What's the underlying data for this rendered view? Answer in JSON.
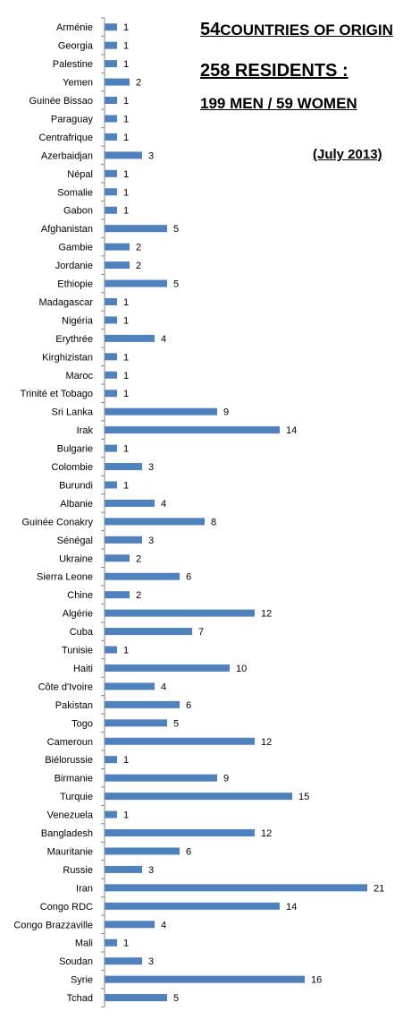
{
  "header": {
    "countries_count": "54",
    "countries_text": "COUNTRIES OF ORIGIN",
    "residents": "258 RESIDENTS :",
    "men_women": "199 MEN  / 59  WOMEN",
    "date": "(July  2013)"
  },
  "colors": {
    "bar": "#4F81BD",
    "axis": "#868686",
    "text": "#000000"
  },
  "chart_data": {
    "type": "bar",
    "orientation": "horizontal",
    "xlim": [
      0,
      21
    ],
    "grid": false,
    "legend": "none",
    "data_labels": true,
    "categories": [
      "Arménie",
      "Georgia",
      "Palestine",
      "Yemen",
      "Guinée Bissao",
      "Paraguay",
      "Centrafrique",
      "Azerbaidjan",
      "Népal",
      "Somalie",
      "Gabon",
      "Afghanistan",
      "Gambie",
      "Jordanie",
      "Ethiopie",
      "Madagascar",
      "Nigéria",
      "Erythrée",
      "Kirghizistan",
      "Maroc",
      "Trinité et Tobago",
      "Sri Lanka",
      "Irak",
      "Bulgarie",
      "Colombie",
      "Burundi",
      "Albanie",
      "Guinée Conakry",
      "Sénégal",
      "Ukraine",
      "Sierra Leone",
      "Chine",
      "Algérie",
      "Cuba",
      "Tunisie",
      "Haiti",
      "Côte d'Ivoire",
      "Pakistan",
      "Togo",
      "Cameroun",
      "Biélorussie",
      "Birmanie",
      "Turquie",
      "Venezuela",
      "Bangladesh",
      "Mauritanie",
      "Russie",
      "Iran",
      "Congo RDC",
      "Congo Brazzaville",
      "Mali",
      "Soudan",
      "Syrie",
      "Tchad"
    ],
    "values": [
      1,
      1,
      1,
      2,
      1,
      1,
      1,
      3,
      1,
      1,
      1,
      5,
      2,
      2,
      5,
      1,
      1,
      4,
      1,
      1,
      1,
      9,
      14,
      1,
      3,
      1,
      4,
      8,
      3,
      2,
      6,
      2,
      12,
      7,
      1,
      10,
      4,
      6,
      5,
      12,
      1,
      9,
      15,
      1,
      12,
      6,
      3,
      21,
      14,
      4,
      1,
      3,
      16,
      5
    ]
  }
}
